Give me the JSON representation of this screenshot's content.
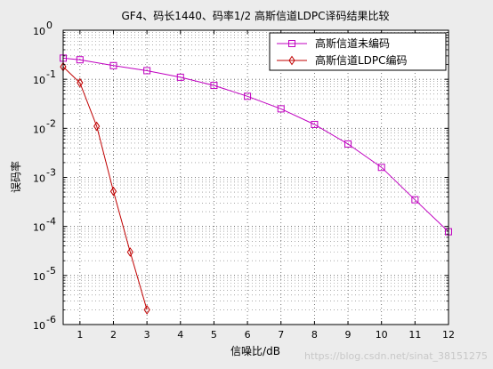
{
  "chart_data": {
    "type": "line",
    "title": "GF4、码长1440、码率1/2 高斯信道LDPC译码结果比较",
    "xlabel": "信噪比/dB",
    "ylabel": "误码率",
    "xlim": [
      0.5,
      12
    ],
    "ylim_log10": [
      -6,
      0
    ],
    "yscale": "log",
    "x_ticks": [
      1,
      2,
      3,
      4,
      5,
      6,
      7,
      8,
      9,
      10,
      11,
      12
    ],
    "y_tick_exponents": [
      0,
      -1,
      -2,
      -3,
      -4,
      -5,
      -6
    ],
    "y_tick_base": "10",
    "grid": true,
    "legend_position": "top-right",
    "series": [
      {
        "name": "高斯信道未编码",
        "color": "#c000c0",
        "marker": "square",
        "x": [
          0.5,
          1,
          2,
          3,
          4,
          5,
          6,
          7,
          8,
          9,
          10,
          11,
          12
        ],
        "y": [
          0.27,
          0.25,
          0.19,
          0.15,
          0.11,
          0.075,
          0.045,
          0.025,
          0.012,
          0.0048,
          0.0016,
          0.00035,
          7.8e-05
        ]
      },
      {
        "name": "高斯信道LDPC编码",
        "color": "#c00000",
        "marker": "diamond",
        "x": [
          0.5,
          1,
          1.5,
          2,
          2.5,
          3
        ],
        "y": [
          0.18,
          0.085,
          0.011,
          0.00052,
          3e-05,
          2e-06
        ]
      }
    ]
  },
  "watermark": "https://blog.csdn.net/sinat_38151275"
}
